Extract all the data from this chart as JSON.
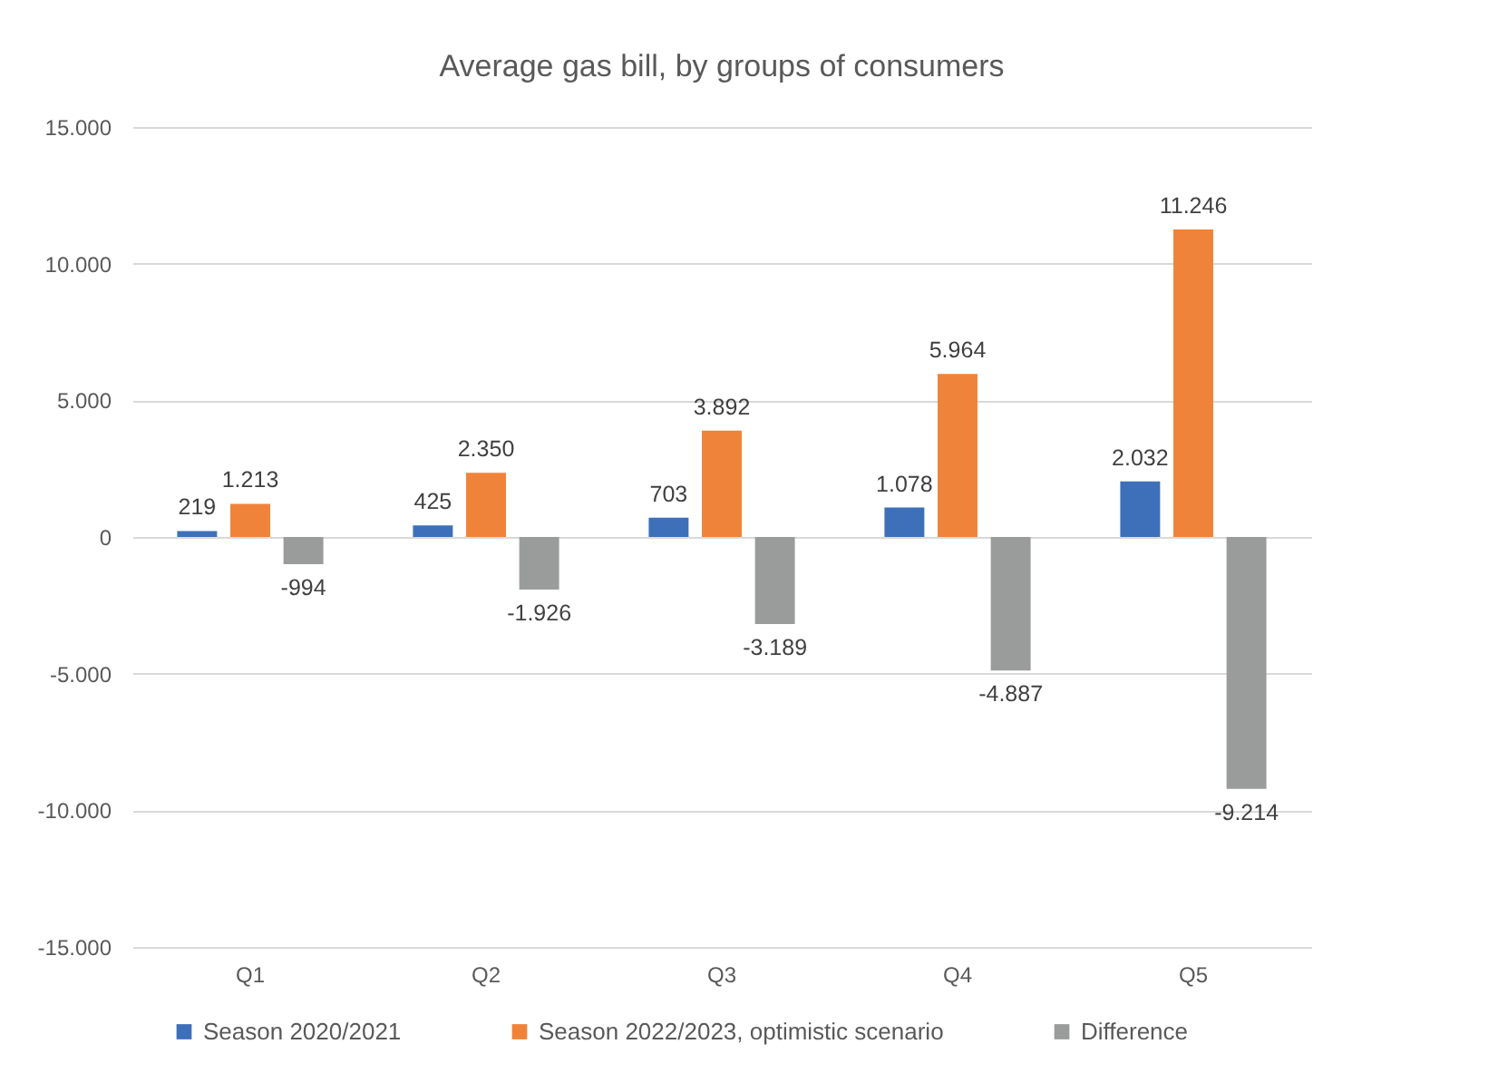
{
  "chart_data": {
    "type": "bar",
    "title": "Average gas bill, by groups of consumers",
    "categories": [
      "Q1",
      "Q2",
      "Q3",
      "Q4",
      "Q5"
    ],
    "series": [
      {
        "name": "Season 2020/2021",
        "color": "#3e70b9",
        "values": [
          219,
          425,
          703,
          1078,
          2032
        ],
        "value_labels": [
          "219",
          "425",
          "703",
          "1.078",
          "2.032"
        ]
      },
      {
        "name": "Season 2022/2023, optimistic scenario",
        "color": "#f0833a",
        "values": [
          1213,
          2350,
          3892,
          5964,
          11246
        ],
        "value_labels": [
          "1.213",
          "2.350",
          "3.892",
          "5.964",
          "11.246"
        ]
      },
      {
        "name": "Difference",
        "color": "#9a9c9c",
        "values": [
          -994,
          -1926,
          -3189,
          -4887,
          -9214
        ],
        "value_labels": [
          "-994",
          "-1.926",
          "-3.189",
          "-4.887",
          "-9.214"
        ]
      }
    ],
    "ylim": [
      -15000,
      15000
    ],
    "yticks": [
      {
        "value": -15000,
        "label": "-15.000"
      },
      {
        "value": -10000,
        "label": "-10.000"
      },
      {
        "value": -5000,
        "label": "-5.000"
      },
      0,
      {
        "value": 5000,
        "label": "5.000"
      },
      {
        "value": 10000,
        "label": "10.000"
      },
      {
        "value": 15000,
        "label": "15.000"
      }
    ],
    "grid": "y",
    "legend": "bottom"
  }
}
